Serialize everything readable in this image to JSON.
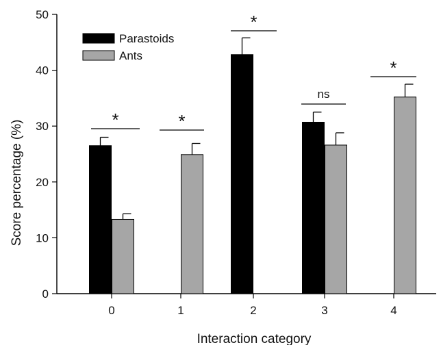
{
  "chart_data": {
    "type": "bar",
    "xlabel": "Interaction category",
    "ylabel": "Score percentage (%)",
    "categories": [
      "0",
      "1",
      "2",
      "3",
      "4"
    ],
    "ylim": [
      0,
      50
    ],
    "yticks": [
      "0",
      "10",
      "20",
      "30",
      "40",
      "50"
    ],
    "grid": false,
    "legend_position": "top-left",
    "series": [
      {
        "name": "Parastoids",
        "color": "#000000",
        "values": [
          26.5,
          null,
          42.8,
          30.7,
          null
        ],
        "errors": [
          1.5,
          null,
          3.0,
          1.8,
          null
        ]
      },
      {
        "name": "Ants",
        "color": "#a6a6a6",
        "values": [
          13.3,
          24.9,
          null,
          26.6,
          35.2
        ],
        "errors": [
          1.0,
          2.0,
          null,
          2.2,
          2.3
        ]
      }
    ],
    "significance": [
      {
        "category": "0",
        "label": "*"
      },
      {
        "category": "1",
        "label": "*"
      },
      {
        "category": "2",
        "label": "*"
      },
      {
        "category": "3",
        "label": "ns"
      },
      {
        "category": "4",
        "label": "*"
      }
    ]
  }
}
